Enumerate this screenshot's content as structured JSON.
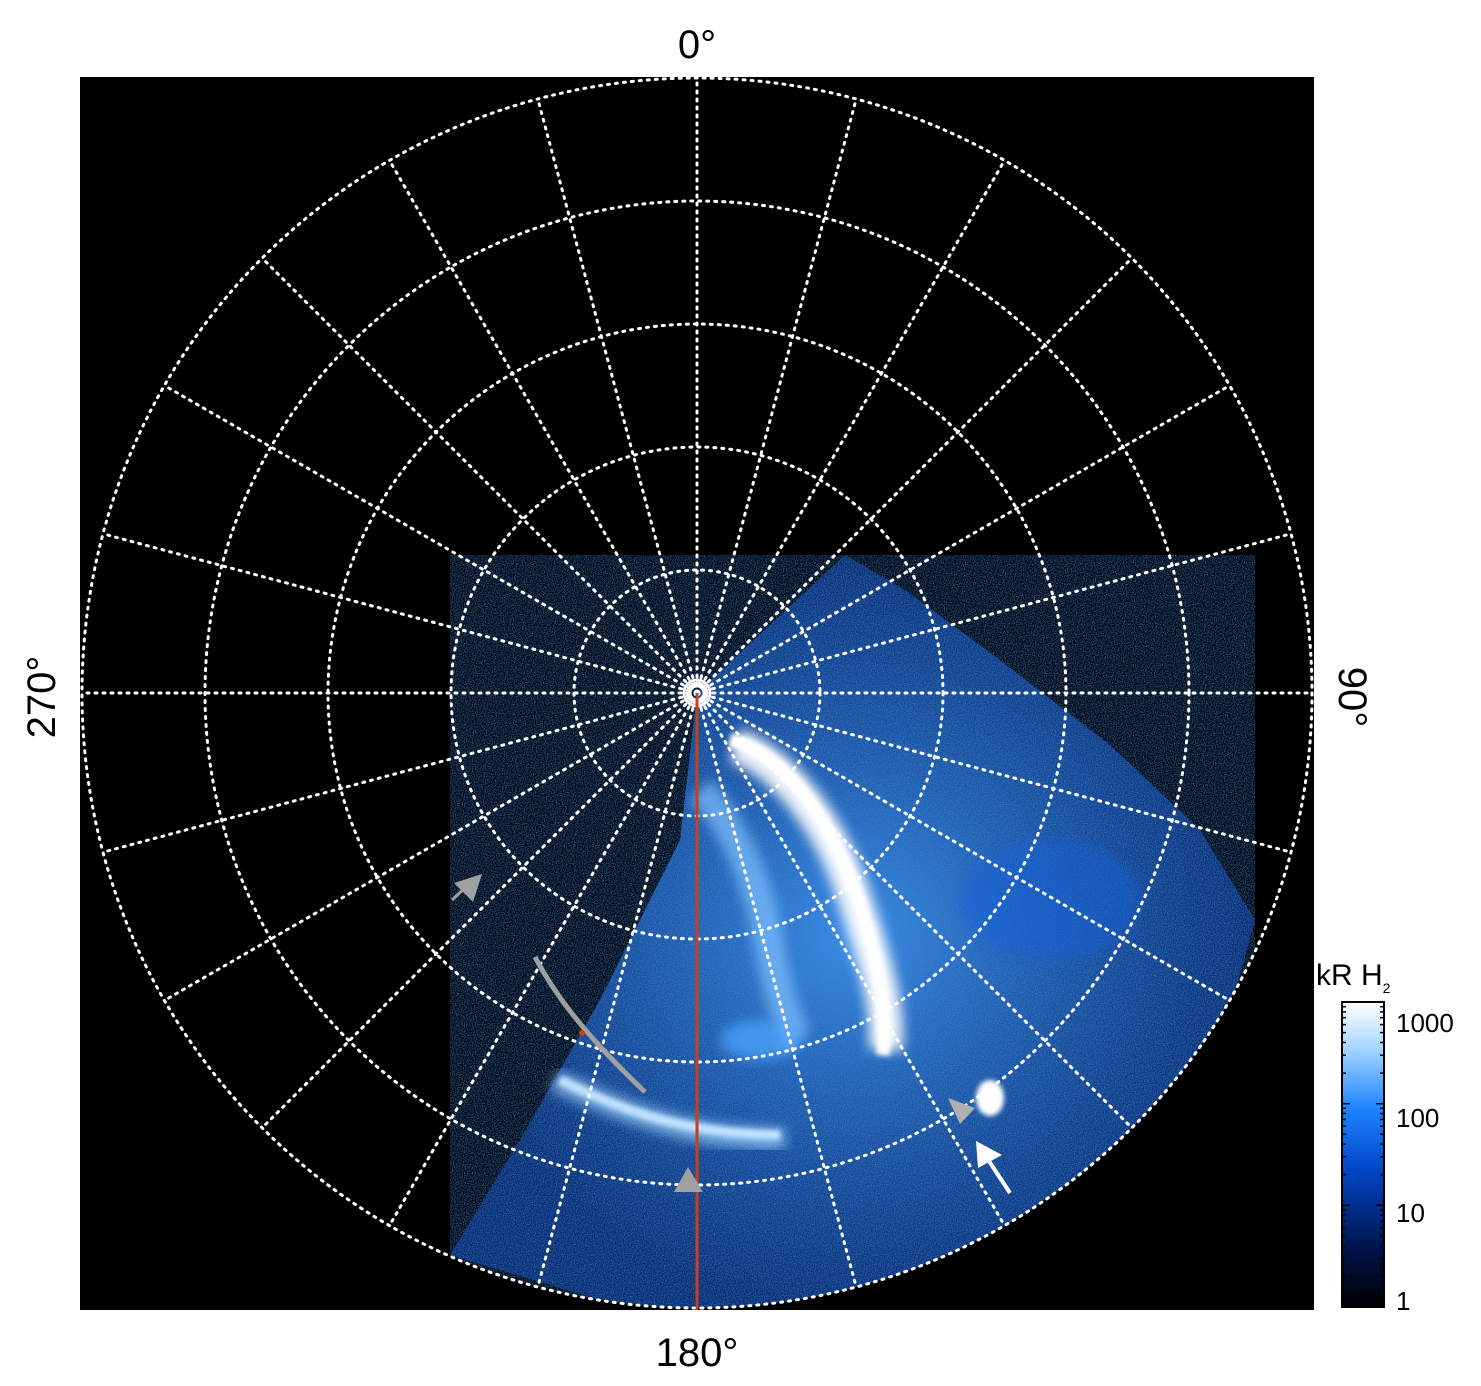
{
  "axis_labels": {
    "top": "0°",
    "bottom": "180°",
    "left": "270°",
    "right": "90°"
  },
  "colorbar": {
    "title_main": "kR H",
    "title_sub": "2",
    "scale": "log",
    "tick_labels": [
      "1000",
      "100",
      "10",
      "1"
    ],
    "tick_values": [
      1000,
      100,
      10,
      1
    ],
    "colors": [
      "#000000",
      "#001a5c",
      "#0050d0",
      "#2a8cff",
      "#9ad0ff",
      "#ffffff"
    ]
  },
  "colors": {
    "background": "#000000",
    "grid": "#ffffff",
    "meridian_line": "#c8401a",
    "gray_marker": "#a0a0a0",
    "white_marker": "#ffffff",
    "aurora_dim": "#0a3fa8",
    "aurora_mid": "#1f7ff0",
    "aurora_bright": "#ffffff"
  },
  "grid": {
    "meridians": 24,
    "latitude_rings": 5,
    "style": "dotted"
  },
  "markers": [
    {
      "name": "gray-arrow-nw",
      "color": "gray"
    },
    {
      "name": "gray-arc-trace",
      "color": "gray"
    },
    {
      "name": "gray-triangle-bottom",
      "color": "gray"
    },
    {
      "name": "gray-triangle-right",
      "color": "gray"
    },
    {
      "name": "white-arrow-right",
      "color": "white"
    }
  ]
}
